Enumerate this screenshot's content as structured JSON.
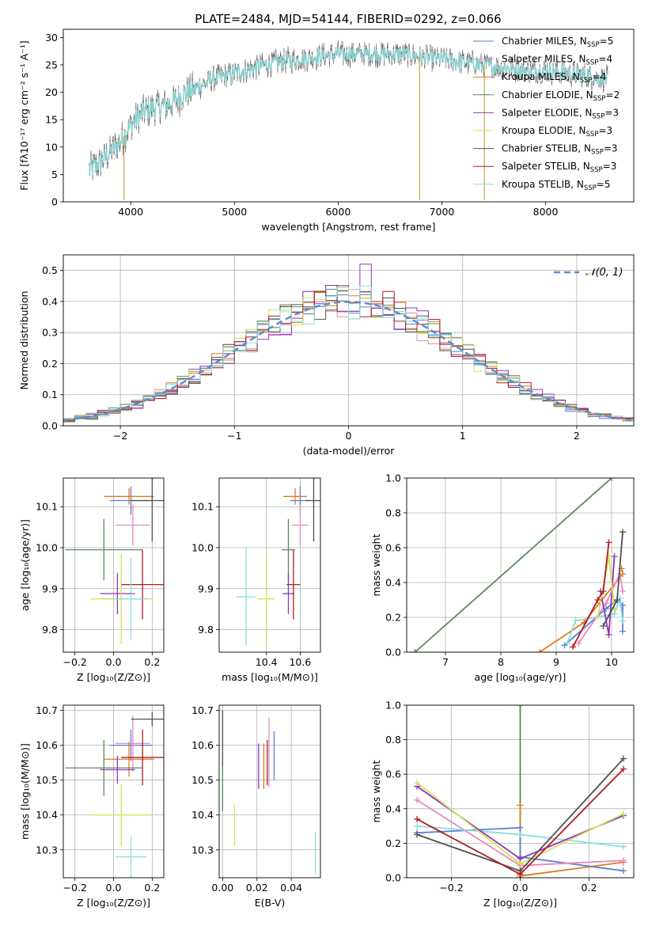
{
  "figure_title": "PLATE=2484, MJD=54144, FIBERID=0292, z=0.066",
  "colors": {
    "chabrier_miles": "#5b7fd4",
    "salpeter_miles": "#e58ac0",
    "kroupa_miles": "#e07a1f",
    "chabrier_elodie": "#5a8a5a",
    "salpeter_elodie": "#8e35b8",
    "kroupa_elodie": "#d4e05a",
    "chabrier_stelib": "#505050",
    "salpeter_stelib": "#b01e1e",
    "kroupa_stelib": "#87dede",
    "grid": "#b0b0b0",
    "normal_curve": "#5b8ad4"
  },
  "chart_data": [
    {
      "id": "spectrum",
      "type": "line",
      "title": "PLATE=2484, MJD=54144, FIBERID=0292, z=0.066",
      "xlabel": "wavelength [Angstrom, rest frame]",
      "ylabel": "Flux [fλ10⁻¹⁷ erg cm⁻² s⁻¹ A⁻¹]",
      "xlim": [
        3350,
        8850
      ],
      "ylim": [
        0,
        31.5
      ],
      "xticks": [
        4000,
        5000,
        6000,
        7000,
        8000
      ],
      "yticks": [
        0,
        5,
        10,
        15,
        20,
        25,
        30
      ],
      "grid": false,
      "legend_position": "top-right",
      "legend": [
        {
          "name": "Chabrier MILES, N",
          "sub": "SSP",
          "val": "=5",
          "color": "#5b7fd4"
        },
        {
          "name": "Salpeter MILES, N",
          "sub": "SSP",
          "val": "=4",
          "color": "#e58ac0"
        },
        {
          "name": "Kroupa MILES, N",
          "sub": "SSP",
          "val": "=4",
          "color": "#e07a1f"
        },
        {
          "name": "Chabrier ELODIE, N",
          "sub": "SSP",
          "val": "=2",
          "color": "#5a8a5a"
        },
        {
          "name": "Salpeter ELODIE, N",
          "sub": "SSP",
          "val": "=3",
          "color": "#8e35b8"
        },
        {
          "name": "Kroupa ELODIE, N",
          "sub": "SSP",
          "val": "=3",
          "color": "#d4e05a"
        },
        {
          "name": "Chabrier STELIB, N",
          "sub": "SSP",
          "val": "=3",
          "color": "#505050"
        },
        {
          "name": "Salpeter STELIB, N",
          "sub": "SSP",
          "val": "=3",
          "color": "#b01e1e"
        },
        {
          "name": "Kroupa STELIB, N",
          "sub": "SSP",
          "val": "=5",
          "color": "#87dede"
        }
      ],
      "continuum": {
        "x": [
          3600,
          3700,
          3800,
          3900,
          4000,
          4100,
          4200,
          4300,
          4400,
          4500,
          4600,
          4700,
          4800,
          4900,
          5000,
          5200,
          5400,
          5600,
          5800,
          6000,
          6200,
          6400,
          6600,
          6800,
          7000,
          7200,
          7400,
          7600,
          7800,
          8000,
          8200,
          8400,
          8600
        ],
        "y": [
          6,
          7,
          9,
          11,
          14,
          16,
          17,
          17.5,
          18,
          19.5,
          20.5,
          21.5,
          22.5,
          23,
          23.5,
          24.5,
          25.5,
          26,
          26.5,
          27,
          27,
          27,
          27,
          26.5,
          26,
          25.5,
          25,
          24.5,
          24,
          24,
          23.5,
          23,
          22.5
        ]
      },
      "dips": [
        {
          "x": 3935,
          "y": 0.3
        },
        {
          "x": 6785,
          "y": 0.3
        },
        {
          "x": 7410,
          "y": 0.3
        }
      ]
    },
    {
      "id": "residuals",
      "type": "histogram",
      "xlabel": "(data-model)/error",
      "ylabel": "Normed distribution",
      "xlim": [
        -2.5,
        2.5
      ],
      "ylim": [
        0,
        0.55
      ],
      "xticks": [
        -2,
        -1,
        0,
        1,
        2
      ],
      "yticks": [
        0.0,
        0.1,
        0.2,
        0.3,
        0.4,
        0.5
      ],
      "grid": true,
      "legend": [
        {
          "name": "𝒩(0, 1)",
          "style": "dashed"
        }
      ],
      "bin_width": 0.1,
      "peak_value": 0.52
    },
    {
      "id": "age_vs_Z",
      "type": "errorbar",
      "xlabel": "Z [log₁₀(Z/Z⊙)]",
      "ylabel": "age  [log₁₀(age/yr)]",
      "xlim": [
        -0.26,
        0.26
      ],
      "ylim": [
        9.745,
        10.17
      ],
      "xticks": [
        -0.2,
        0.0,
        0.2
      ],
      "yticks": [
        9.8,
        9.9,
        10.0,
        10.1
      ],
      "grid": true,
      "points": [
        {
          "x": 0.09,
          "y": 10.115,
          "xerr": 0.11,
          "yerr": 0.035,
          "color": "#5b7fd4"
        },
        {
          "x": 0.1,
          "y": 10.055,
          "xerr": 0.09,
          "yerr": 0.05,
          "color": "#e58ac0"
        },
        {
          "x": 0.08,
          "y": 10.125,
          "xerr": 0.13,
          "yerr": 0.02,
          "color": "#e07a1f"
        },
        {
          "x": -0.05,
          "y": 9.995,
          "xerr": 0.2,
          "yerr": 0.075,
          "color": "#5a8a5a"
        },
        {
          "x": 0.02,
          "y": 9.888,
          "xerr": 0.09,
          "yerr": 0.05,
          "color": "#8e35b8"
        },
        {
          "x": 0.04,
          "y": 9.875,
          "xerr": 0.16,
          "yerr": 0.11,
          "color": "#d4e05a"
        },
        {
          "x": 0.2,
          "y": 10.115,
          "xerr": 0.11,
          "yerr": 0.1,
          "color": "#505050"
        },
        {
          "x": 0.15,
          "y": 9.91,
          "xerr": 0.11,
          "yerr": 0.085,
          "color": "#b01e1e"
        },
        {
          "x": 0.09,
          "y": 9.875,
          "xerr": 0.08,
          "yerr": 0.1,
          "color": "#87dede"
        }
      ]
    },
    {
      "id": "age_vs_mass",
      "type": "errorbar",
      "xlabel": "mass [log₁₀(M/M⊙)]",
      "ylabel": "",
      "xlim": [
        10.12,
        10.72
      ],
      "ylim": [
        9.745,
        10.17
      ],
      "xticks": [
        10.4,
        10.6
      ],
      "yticks": [
        9.8,
        9.9,
        10.0,
        10.1
      ],
      "grid": true,
      "points": [
        {
          "x": 10.6,
          "y": 10.115,
          "xerr": 0.06,
          "yerr": 0.035,
          "color": "#5b7fd4"
        },
        {
          "x": 10.6,
          "y": 10.055,
          "xerr": 0.05,
          "yerr": 0.05,
          "color": "#e58ac0"
        },
        {
          "x": 10.57,
          "y": 10.125,
          "xerr": 0.07,
          "yerr": 0.02,
          "color": "#e07a1f"
        },
        {
          "x": 10.53,
          "y": 9.995,
          "xerr": 0.04,
          "yerr": 0.075,
          "color": "#5a8a5a"
        },
        {
          "x": 10.53,
          "y": 9.888,
          "xerr": 0.035,
          "yerr": 0.05,
          "color": "#8e35b8"
        },
        {
          "x": 10.4,
          "y": 9.875,
          "xerr": 0.05,
          "yerr": 0.11,
          "color": "#d4e05a"
        },
        {
          "x": 10.68,
          "y": 10.115,
          "xerr": 0.05,
          "yerr": 0.1,
          "color": "#505050"
        },
        {
          "x": 10.56,
          "y": 9.91,
          "xerr": 0.04,
          "yerr": 0.085,
          "color": "#b01e1e"
        },
        {
          "x": 10.28,
          "y": 9.88,
          "xerr": 0.06,
          "yerr": 0.12,
          "color": "#87dede"
        }
      ]
    },
    {
      "id": "mass_weight_vs_age",
      "type": "line",
      "xlabel": "age  [log₁₀(age/yr)]",
      "ylabel": "mass weight",
      "xlim": [
        6.3,
        10.4
      ],
      "ylim": [
        0,
        1
      ],
      "xticks": [
        7,
        8,
        9,
        10
      ],
      "yticks": [
        0.0,
        0.2,
        0.4,
        0.6,
        0.8,
        1.0
      ],
      "grid": true,
      "series": [
        {
          "color": "#5a8a5a",
          "x": [
            6.45,
            10.0
          ],
          "y": [
            0.0,
            1.0
          ]
        },
        {
          "color": "#e07a1f",
          "x": [
            8.7,
            9.5,
            10.2,
            10.18
          ],
          "y": [
            0.0,
            0.17,
            0.45,
            0.48
          ]
        },
        {
          "color": "#5b7fd4",
          "x": [
            9.15,
            9.9,
            10.1,
            10.2,
            10.2
          ],
          "y": [
            0.04,
            0.25,
            0.3,
            0.27,
            0.12
          ]
        },
        {
          "color": "#e58ac0",
          "x": [
            9.4,
            9.9,
            10.15,
            10.2
          ],
          "y": [
            0.05,
            0.28,
            0.45,
            0.35
          ]
        },
        {
          "color": "#87dede",
          "x": [
            9.2,
            9.35,
            10.05,
            10.15,
            10.2
          ],
          "y": [
            0.05,
            0.18,
            0.22,
            0.31,
            0.18
          ]
        },
        {
          "color": "#8e35b8",
          "x": [
            9.8,
            9.95,
            10.05
          ],
          "y": [
            0.35,
            0.1,
            0.55
          ]
        },
        {
          "color": "#d4e05a",
          "x": [
            9.75,
            9.95,
            10.05
          ],
          "y": [
            0.2,
            0.55,
            0.25
          ]
        },
        {
          "color": "#505050",
          "x": [
            9.85,
            10.1,
            10.2
          ],
          "y": [
            0.15,
            0.3,
            0.69
          ]
        },
        {
          "color": "#b01e1e",
          "x": [
            9.3,
            9.75,
            9.85,
            9.95
          ],
          "y": [
            0.03,
            0.3,
            0.35,
            0.63
          ]
        }
      ]
    },
    {
      "id": "mass_vs_Z",
      "type": "errorbar",
      "xlabel": "Z [log₁₀(Z/Z⊙)]",
      "ylabel": "mass [log₁₀(M/M⊙)]",
      "xlim": [
        -0.26,
        0.26
      ],
      "ylim": [
        10.22,
        10.715
      ],
      "xticks": [
        -0.2,
        0.0,
        0.2
      ],
      "yticks": [
        10.3,
        10.4,
        10.5,
        10.6,
        10.7
      ],
      "grid": true,
      "points": [
        {
          "x": 0.09,
          "y": 10.6,
          "xerr": 0.11,
          "yerr": 0.045,
          "color": "#5b7fd4"
        },
        {
          "x": 0.1,
          "y": 10.605,
          "xerr": 0.09,
          "yerr": 0.08,
          "color": "#e58ac0"
        },
        {
          "x": 0.08,
          "y": 10.56,
          "xerr": 0.13,
          "yerr": 0.05,
          "color": "#e07a1f"
        },
        {
          "x": -0.05,
          "y": 10.535,
          "xerr": 0.2,
          "yerr": 0.08,
          "color": "#5a8a5a"
        },
        {
          "x": 0.02,
          "y": 10.53,
          "xerr": 0.09,
          "yerr": 0.04,
          "color": "#8e35b8"
        },
        {
          "x": 0.04,
          "y": 10.4,
          "xerr": 0.16,
          "yerr": 0.09,
          "color": "#d4e05a"
        },
        {
          "x": 0.2,
          "y": 10.675,
          "xerr": 0.11,
          "yerr": 0.02,
          "color": "#505050"
        },
        {
          "x": 0.15,
          "y": 10.565,
          "xerr": 0.11,
          "yerr": 0.08,
          "color": "#b01e1e"
        },
        {
          "x": 0.09,
          "y": 10.28,
          "xerr": 0.08,
          "yerr": 0.06,
          "color": "#87dede"
        }
      ]
    },
    {
      "id": "mass_vs_EBV",
      "type": "errorbar",
      "xlabel": "E(B-V)",
      "ylabel": "",
      "xlim": [
        -0.002,
        0.057
      ],
      "ylim": [
        10.22,
        10.715
      ],
      "xticks": [
        0.0,
        0.02,
        0.04
      ],
      "yticks": [
        10.3,
        10.4,
        10.5,
        10.6,
        10.7
      ],
      "grid": true,
      "points": [
        {
          "x": 0.03,
          "y": 10.57,
          "xerr": 0,
          "yerr": 0.07,
          "color": "#5b7fd4"
        },
        {
          "x": 0.027,
          "y": 10.58,
          "xerr": 0,
          "yerr": 0.1,
          "color": "#e58ac0"
        },
        {
          "x": 0.024,
          "y": 10.54,
          "xerr": 0,
          "yerr": 0.065,
          "color": "#e07a1f"
        },
        {
          "x": 0.0,
          "y": 10.48,
          "xerr": 0,
          "yerr": 0.07,
          "color": "#5a8a5a"
        },
        {
          "x": 0.021,
          "y": 10.54,
          "xerr": 0,
          "yerr": 0.065,
          "color": "#8e35b8"
        },
        {
          "x": 0.007,
          "y": 10.37,
          "xerr": 0,
          "yerr": 0.06,
          "color": "#d4e05a"
        },
        {
          "x": 0.0,
          "y": 10.62,
          "xerr": 0,
          "yerr": 0.08,
          "color": "#505050"
        },
        {
          "x": 0.026,
          "y": 10.55,
          "xerr": 0,
          "yerr": 0.065,
          "color": "#b01e1e"
        },
        {
          "x": 0.054,
          "y": 10.29,
          "xerr": 0,
          "yerr": 0.06,
          "color": "#87dede"
        }
      ]
    },
    {
      "id": "mass_weight_vs_Z",
      "type": "line",
      "xlabel": "Z [log₁₀(Z/Z⊙)]",
      "ylabel": "mass weight",
      "xlim": [
        -0.33,
        0.33
      ],
      "ylim": [
        0,
        1
      ],
      "xticks": [
        -0.2,
        0.0,
        0.2
      ],
      "yticks": [
        0.0,
        0.2,
        0.4,
        0.6,
        0.8,
        1.0
      ],
      "grid": true,
      "series": [
        {
          "color": "#5a8a5a",
          "x": [
            0.0,
            0.0
          ],
          "y": [
            0.0,
            1.0
          ]
        },
        {
          "color": "#e07a1f",
          "x": [
            0.0,
            0.0,
            0.3
          ],
          "y": [
            0.42,
            0.01,
            0.09
          ]
        },
        {
          "color": "#5b7fd4",
          "x": [
            -0.3,
            0.0,
            0.0,
            0.3
          ],
          "y": [
            0.26,
            0.29,
            0.12,
            0.04
          ]
        },
        {
          "color": "#e58ac0",
          "x": [
            -0.3,
            0.0,
            0.3
          ],
          "y": [
            0.45,
            0.07,
            0.1
          ]
        },
        {
          "color": "#87dede",
          "x": [
            -0.3,
            0.0,
            0.3
          ],
          "y": [
            0.3,
            0.25,
            0.18
          ]
        },
        {
          "color": "#8e35b8",
          "x": [
            -0.3,
            0.0,
            0.3
          ],
          "y": [
            0.53,
            0.11,
            0.36
          ]
        },
        {
          "color": "#d4e05a",
          "x": [
            -0.3,
            0.0,
            0.3
          ],
          "y": [
            0.55,
            0.08,
            0.37
          ]
        },
        {
          "color": "#505050",
          "x": [
            -0.3,
            0.0,
            0.3
          ],
          "y": [
            0.25,
            0.04,
            0.69
          ]
        },
        {
          "color": "#b01e1e",
          "x": [
            -0.3,
            0.0,
            0.3
          ],
          "y": [
            0.34,
            0.02,
            0.63
          ]
        }
      ]
    }
  ]
}
